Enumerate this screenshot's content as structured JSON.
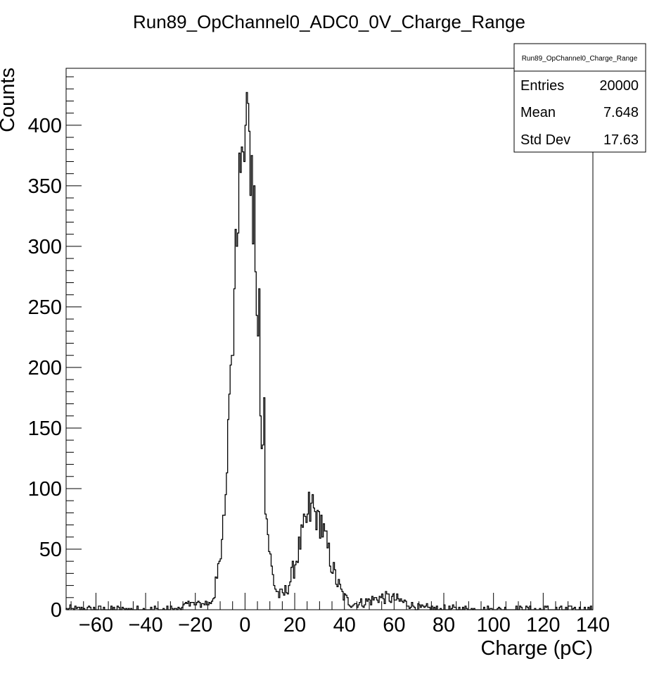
{
  "chart_data": {
    "type": "histogram",
    "title": "Run89_OpChannel0_ADC0_0V_Charge_Range",
    "xlabel": "Charge (pC)",
    "ylabel": "Counts",
    "xlim": [
      -72,
      140
    ],
    "ylim": [
      0,
      447
    ],
    "x_ticks": [
      "-60",
      "-40",
      "-20",
      "0",
      "20",
      "40",
      "60",
      "80",
      "100",
      "120",
      "140"
    ],
    "y_ticks": [
      "0",
      "50",
      "100",
      "150",
      "200",
      "250",
      "300",
      "350",
      "400"
    ],
    "bin_width": 0.5,
    "grid": false,
    "legend": "none",
    "stats": {
      "name": "Run89_OpChannel0_Charge_Range",
      "entries_label": "Entries",
      "entries": "20000",
      "mean_label": "Mean",
      "mean": "7.648",
      "stddev_label": "Std Dev",
      "stddev": "17.63"
    },
    "components": [
      {
        "center": 0,
        "sigma": 4.8,
        "amplitude": 395
      },
      {
        "center": 27.5,
        "sigma": 6,
        "amplitude": 80
      },
      {
        "center": 56,
        "sigma": 8,
        "amplitude": 10
      }
    ],
    "spikes": [
      {
        "x": 0.5,
        "y": 427
      },
      {
        "x": 1,
        "y": 418
      },
      {
        "x": -1.5,
        "y": 382
      },
      {
        "x": -1,
        "y": 378
      },
      {
        "x": 1.5,
        "y": 395
      },
      {
        "x": -0.5,
        "y": 370
      },
      {
        "x": 2.5,
        "y": 375
      },
      {
        "x": 3.5,
        "y": 350
      },
      {
        "x": -3.5,
        "y": 300
      },
      {
        "x": 5.5,
        "y": 265
      },
      {
        "x": -5,
        "y": 210
      },
      {
        "x": 7.5,
        "y": 175
      },
      {
        "x": 25.5,
        "y": 97
      },
      {
        "x": 27,
        "y": 95
      },
      {
        "x": 29,
        "y": 82
      },
      {
        "x": 30.5,
        "y": 78
      },
      {
        "x": 24.5,
        "y": 72
      },
      {
        "x": 32,
        "y": 65
      }
    ],
    "noise_level": 2
  }
}
